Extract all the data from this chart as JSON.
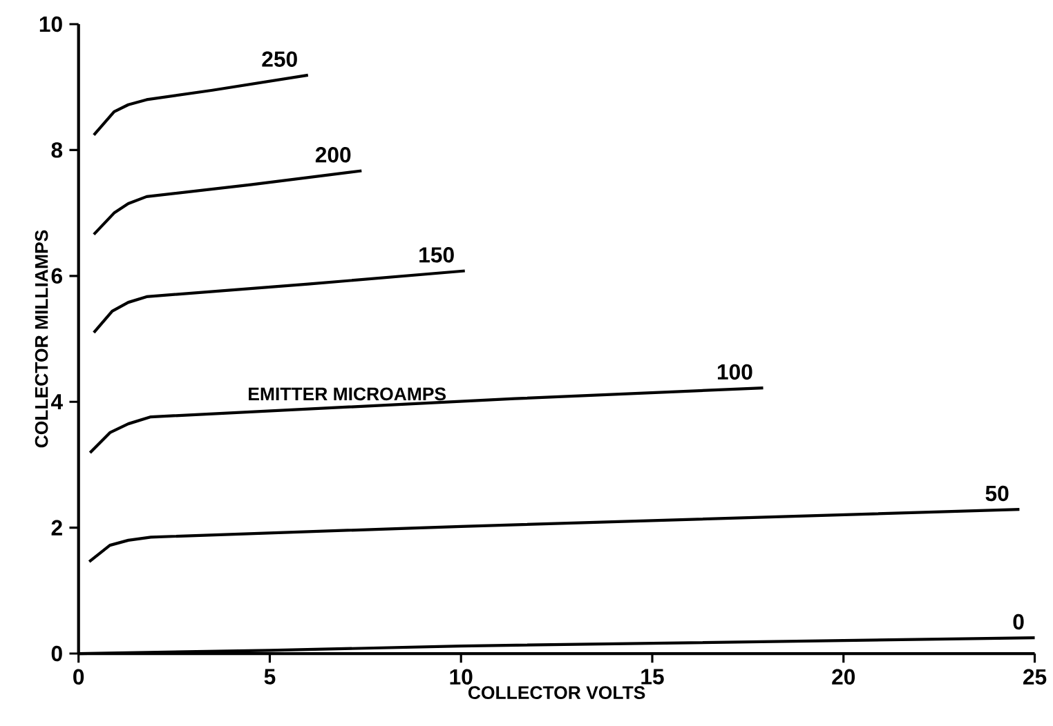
{
  "chart_data": {
    "type": "line",
    "xlabel": "COLLECTOR VOLTS",
    "ylabel": "COLLECTOR MILLIAMPS",
    "xlim": [
      0,
      25
    ],
    "ylim": [
      0,
      10
    ],
    "xticks": [
      0,
      5,
      10,
      15,
      20,
      25
    ],
    "yticks": [
      0,
      2,
      4,
      6,
      8,
      10
    ],
    "grid": false,
    "line_style": "solid",
    "annotations": [
      "EMITTER MICROAMPS"
    ],
    "series": [
      {
        "name": "250",
        "color": "#000000",
        "x": [
          0.4,
          0.93,
          1.3,
          1.78,
          3.5,
          6.0
        ],
        "values": [
          8.24,
          8.61,
          8.72,
          8.8,
          8.95,
          9.19
        ]
      },
      {
        "name": "200",
        "color": "#000000",
        "x": [
          0.4,
          0.93,
          1.3,
          1.78,
          4.5,
          7.4
        ],
        "values": [
          6.66,
          7.0,
          7.15,
          7.26,
          7.45,
          7.67
        ]
      },
      {
        "name": "150",
        "color": "#000000",
        "x": [
          0.4,
          0.88,
          1.3,
          1.78,
          6.0,
          10.1
        ],
        "values": [
          5.1,
          5.44,
          5.58,
          5.67,
          5.87,
          6.08
        ]
      },
      {
        "name": "100",
        "color": "#000000",
        "x": [
          0.3,
          0.82,
          1.3,
          1.89,
          11.4,
          17.9
        ],
        "values": [
          3.19,
          3.51,
          3.65,
          3.76,
          4.05,
          4.22
        ]
      },
      {
        "name": "50",
        "color": "#000000",
        "x": [
          0.28,
          0.82,
          1.3,
          1.89,
          10.0,
          24.6
        ],
        "values": [
          1.46,
          1.72,
          1.8,
          1.85,
          2.02,
          2.29
        ]
      },
      {
        "name": "0",
        "color": "#000000",
        "x": [
          0,
          5,
          10,
          25
        ],
        "values": [
          0,
          0.05,
          0.12,
          0.25
        ]
      }
    ]
  }
}
